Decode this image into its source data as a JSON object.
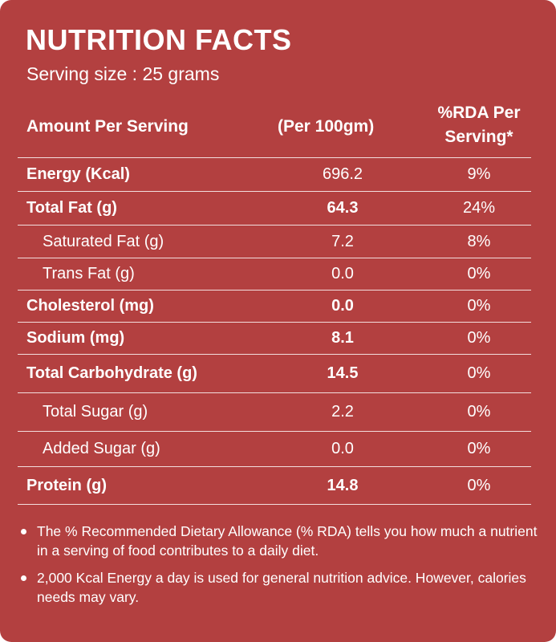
{
  "title": "NUTRITION FACTS",
  "serving_size": "Serving size : 25 grams",
  "table": {
    "headers": [
      "Amount Per Serving",
      "(Per 100gm)",
      "%RDA Per Serving*"
    ],
    "rows": [
      {
        "nutrient": "Energy (Kcal)",
        "per_100g": "696.2",
        "rda": "9%",
        "style": "bold",
        "value_bold": false
      },
      {
        "nutrient": "Total Fat (g)",
        "per_100g": "64.3",
        "rda": "24%",
        "style": "bold",
        "value_bold": true
      },
      {
        "nutrient": "Saturated Fat (g)",
        "per_100g": "7.2",
        "rda": "8%",
        "style": "sub",
        "value_bold": false
      },
      {
        "nutrient": "Trans Fat (g)",
        "per_100g": "0.0",
        "rda": "0%",
        "style": "sub",
        "value_bold": false
      },
      {
        "nutrient": "Cholesterol (mg)",
        "per_100g": "0.0",
        "rda": "0%",
        "style": "bold",
        "value_bold": true
      },
      {
        "nutrient": "Sodium  (mg)",
        "per_100g": "8.1",
        "rda": "0%",
        "style": "bold",
        "value_bold": true
      },
      {
        "nutrient": "Total Carbohydrate (g)",
        "per_100g": "14.5",
        "rda": "0%",
        "style": "bold",
        "value_bold": true
      },
      {
        "nutrient": "Total Sugar (g)",
        "per_100g": "2.2",
        "rda": "0%",
        "style": "sub",
        "value_bold": false
      },
      {
        "nutrient": "Added Sugar (g)",
        "per_100g": "0.0",
        "rda": "0%",
        "style": "sub",
        "value_bold": false
      },
      {
        "nutrient": "Protein (g)",
        "per_100g": "14.8",
        "rda": "0%",
        "style": "bold",
        "value_bold": true
      }
    ]
  },
  "notes": [
    "The % Recommended Dietary Allowance (% RDA) tells you how much a nutrient in a serving of food contributes to a daily diet.",
    "2,000 Kcal Energy a day is used for general nutrition advice. However, calories needs may vary."
  ],
  "colors": {
    "background": "#b34040",
    "text": "#ffffff"
  }
}
